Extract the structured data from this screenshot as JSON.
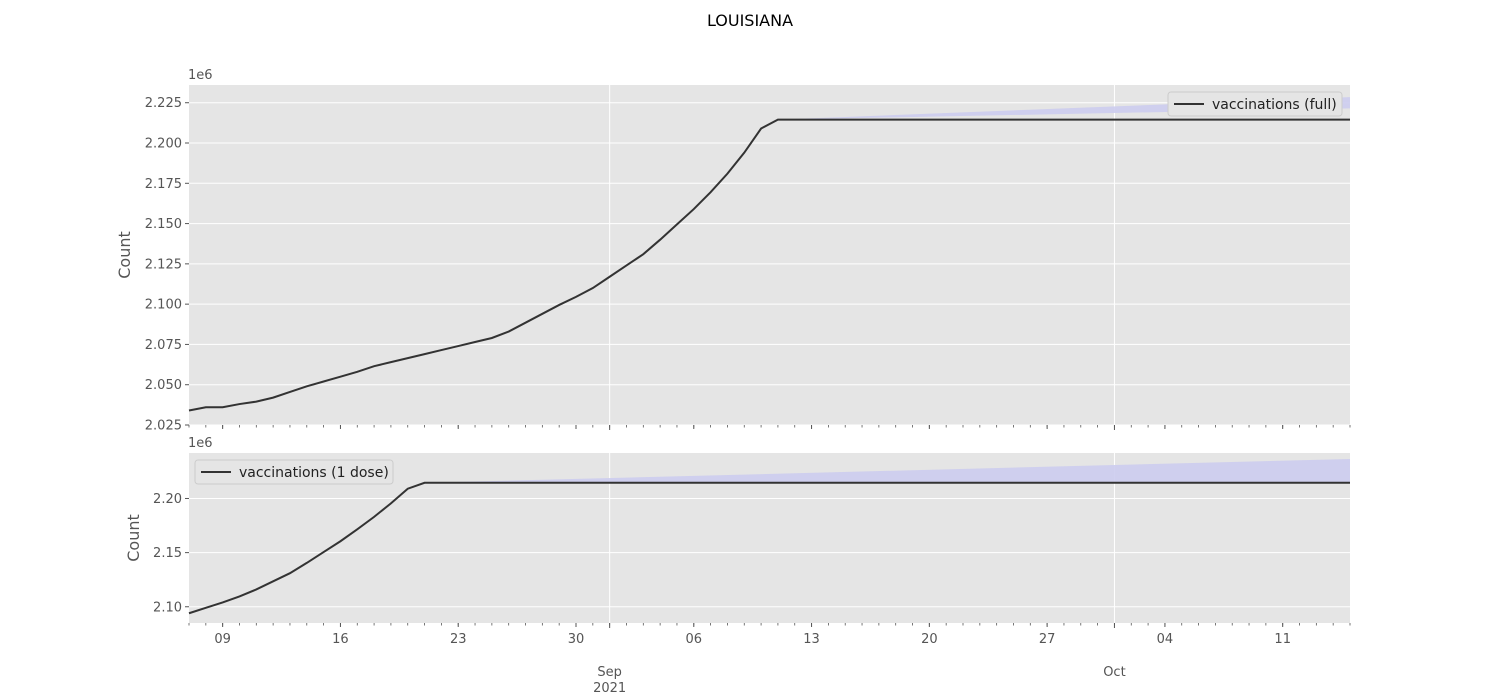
{
  "figure": {
    "title": "LOUISIANA"
  },
  "chart_data": [
    {
      "type": "line",
      "title": "",
      "xlabel": "",
      "ylabel": "Count",
      "scale_label": "1e6",
      "xlim": [
        "2021-08-07",
        "2021-10-15"
      ],
      "ylim": [
        2.025,
        2.236
      ],
      "yticks": [
        2.025,
        2.05,
        2.075,
        2.1,
        2.125,
        2.15,
        2.175,
        2.2,
        2.225
      ],
      "ytick_labels": [
        "2.025",
        "2.050",
        "2.075",
        "2.100",
        "2.125",
        "2.150",
        "2.175",
        "2.200",
        "2.225"
      ],
      "grid": true,
      "legend": {
        "position": "top-right",
        "entries": [
          "vaccinations (full)"
        ]
      },
      "series": [
        {
          "name": "vaccinations (full)",
          "color": "#333333",
          "x": [
            "2021-08-07",
            "2021-08-08",
            "2021-08-09",
            "2021-08-10",
            "2021-08-11",
            "2021-08-12",
            "2021-08-13",
            "2021-08-14",
            "2021-08-15",
            "2021-08-16",
            "2021-08-17",
            "2021-08-18",
            "2021-08-19",
            "2021-08-20",
            "2021-08-21",
            "2021-08-22",
            "2021-08-23",
            "2021-08-24",
            "2021-08-25",
            "2021-08-26",
            "2021-08-27",
            "2021-08-28",
            "2021-08-29",
            "2021-08-30",
            "2021-08-31",
            "2021-09-01",
            "2021-09-02",
            "2021-09-03",
            "2021-09-04",
            "2021-09-05",
            "2021-09-06",
            "2021-09-07",
            "2021-09-08",
            "2021-09-09",
            "2021-09-10",
            "2021-09-11",
            "2021-10-15"
          ],
          "y": [
            2.034,
            2.036,
            2.036,
            2.038,
            2.0395,
            2.042,
            2.0455,
            2.049,
            2.052,
            2.055,
            2.058,
            2.0615,
            2.064,
            2.0665,
            2.069,
            2.0715,
            2.074,
            2.0765,
            2.079,
            2.083,
            2.0885,
            2.094,
            2.0995,
            2.1045,
            2.11,
            2.117,
            2.124,
            2.131,
            2.14,
            2.1495,
            2.159,
            2.1695,
            2.181,
            2.194,
            2.209,
            2.2145,
            2.2145
          ]
        }
      ],
      "confidence_band": {
        "color": "#ccccee",
        "x": [
          "2021-09-11",
          "2021-10-15"
        ],
        "lower": [
          2.2145,
          2.2215
        ],
        "upper": [
          2.2145,
          2.2285
        ]
      }
    },
    {
      "type": "line",
      "title": "",
      "xlabel": "",
      "ylabel": "Count",
      "scale_label": "1e6",
      "xlim": [
        "2021-08-07",
        "2021-10-15"
      ],
      "ylim": [
        2.085,
        2.242
      ],
      "yticks": [
        2.1,
        2.15,
        2.2
      ],
      "ytick_labels": [
        "2.10",
        "2.15",
        "2.20"
      ],
      "grid": true,
      "legend": {
        "position": "top-left",
        "entries": [
          "vaccinations (1 dose)"
        ]
      },
      "series": [
        {
          "name": "vaccinations (1 dose)",
          "color": "#333333",
          "x": [
            "2021-08-07",
            "2021-08-08",
            "2021-08-09",
            "2021-08-10",
            "2021-08-11",
            "2021-08-12",
            "2021-08-13",
            "2021-08-14",
            "2021-08-15",
            "2021-08-16",
            "2021-08-17",
            "2021-08-18",
            "2021-08-19",
            "2021-08-20",
            "2021-08-21",
            "2021-10-15"
          ],
          "y": [
            2.094,
            2.099,
            2.104,
            2.1095,
            2.116,
            2.1235,
            2.131,
            2.1405,
            2.1505,
            2.1605,
            2.1715,
            2.183,
            2.1955,
            2.209,
            2.2145,
            2.2145
          ]
        }
      ],
      "confidence_band": {
        "color": "#ccccee",
        "x": [
          "2021-08-21",
          "2021-10-15"
        ],
        "lower": [
          2.2145,
          2.2145
        ],
        "upper": [
          2.2145,
          2.2365
        ]
      }
    }
  ],
  "xaxis": {
    "day_ticks": [
      {
        "date": "2021-08-09",
        "label": "09"
      },
      {
        "date": "2021-08-16",
        "label": "16"
      },
      {
        "date": "2021-08-23",
        "label": "23"
      },
      {
        "date": "2021-08-30",
        "label": "30"
      },
      {
        "date": "2021-09-06",
        "label": "06"
      },
      {
        "date": "2021-09-13",
        "label": "13"
      },
      {
        "date": "2021-09-20",
        "label": "20"
      },
      {
        "date": "2021-09-27",
        "label": "27"
      },
      {
        "date": "2021-10-04",
        "label": "04"
      },
      {
        "date": "2021-10-11",
        "label": "11"
      }
    ],
    "month_ticks": [
      {
        "date": "2021-09-01",
        "label": "Sep",
        "sublabel": "2021"
      },
      {
        "date": "2021-10-01",
        "label": "Oct",
        "sublabel": ""
      }
    ]
  },
  "colors": {
    "background": "#ffffff",
    "plot_background": "#e5e5e5",
    "grid": "#ffffff",
    "line": "#333333",
    "band": "#ccccee"
  }
}
